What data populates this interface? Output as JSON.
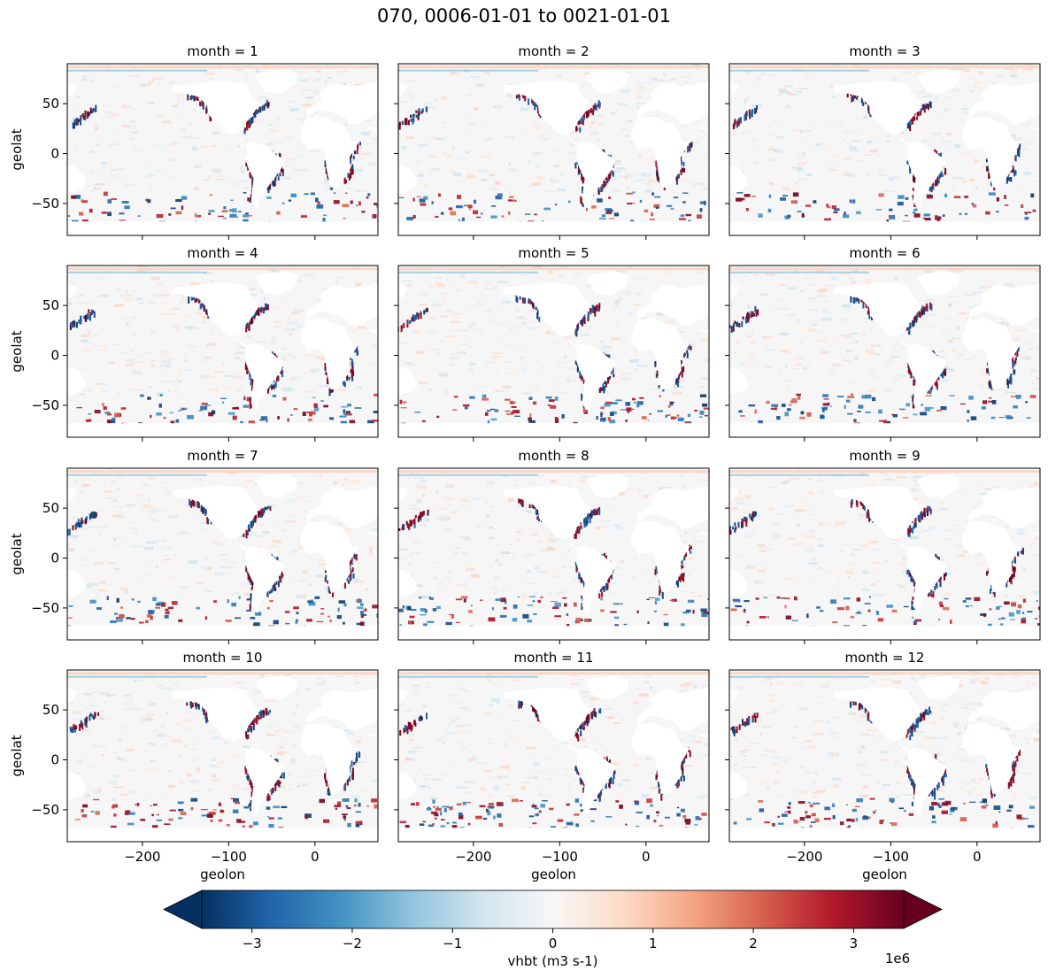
{
  "chart_data": {
    "type": "heatmap",
    "title": "070, 0006-01-01 to 0021-01-01",
    "facet": {
      "panel_titles": [
        "month = 1",
        "month = 2",
        "month = 3",
        "month = 4",
        "month = 5",
        "month = 6",
        "month = 7",
        "month = 8",
        "month = 9",
        "month = 10",
        "month = 11",
        "month = 12"
      ],
      "rows": 4,
      "cols": 3
    },
    "xlabel": "geolon",
    "ylabel": "geolat",
    "xlim": [
      -287,
      73
    ],
    "ylim": [
      -82,
      90
    ],
    "xticks": [
      -200,
      -100,
      0
    ],
    "xtick_labels": [
      "−200",
      "−100",
      "0"
    ],
    "yticks": [
      -50,
      0,
      50
    ],
    "ytick_labels": [
      "−50",
      "0",
      "50"
    ],
    "colorbar": {
      "label": "vhbt (m3 s-1)",
      "scale_label": "1e6",
      "vmin": -3.5,
      "vmax": 3.5,
      "ticks": [
        -3,
        -2,
        -1,
        0,
        1,
        2,
        3
      ],
      "tick_labels": [
        "−3",
        "−2",
        "−1",
        "0",
        "1",
        "2",
        "3"
      ],
      "extend": "both",
      "colormap": "RdBu_r",
      "colors": [
        "#053061",
        "#2166ac",
        "#4393c3",
        "#92c5de",
        "#d1e5f0",
        "#f7f7f7",
        "#fddbc7",
        "#f4a582",
        "#d6604d",
        "#b2182b",
        "#67001f"
      ]
    }
  }
}
